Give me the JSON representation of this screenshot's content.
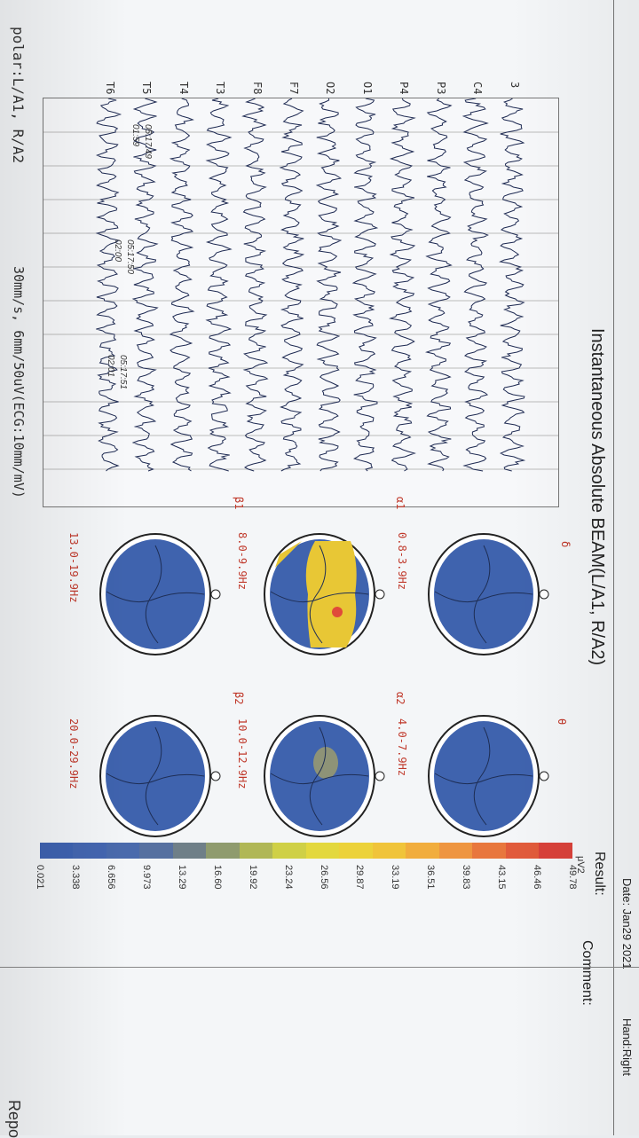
{
  "header": {
    "date": "Date: Jan29 2021",
    "hand": "Hand:Right",
    "report": "Repo"
  },
  "title": "Instantaneous Absolute BEAM(L/A1, R/A2)",
  "eeg": {
    "channels": [
      "C4",
      "P3",
      "P4",
      "O1",
      "O2",
      "F7",
      "F8",
      "T3",
      "T4",
      "T5",
      "T6"
    ],
    "channel_partial": "3",
    "times": [
      {
        "top": "05:17:49",
        "bottom": "01:59"
      },
      {
        "top": "05:17:50",
        "bottom": "02:00"
      },
      {
        "top": "05:17:51",
        "bottom": "02:01"
      }
    ],
    "polar": "polar:L/A1,  R/A2",
    "speed": "30mm/s, 6mm/50uV(ECG:10mm/mV)"
  },
  "bands": [
    {
      "letter": "δ",
      "range": "0.8-3.9Hz",
      "letter_pos": "delta"
    },
    {
      "letter": "θ",
      "range": "4.0-7.9Hz",
      "letter_pos": "theta"
    },
    {
      "letter": "α1",
      "range": "8.0-9.9Hz"
    },
    {
      "letter": "α2",
      "range": "10.0-12.9Hz"
    },
    {
      "letter": "β1",
      "range": "13.0-19.9Hz"
    },
    {
      "letter": "β2",
      "range": "20.0-29.9Hz"
    }
  ],
  "scale": {
    "unit": "μV2",
    "values": [
      "49.78",
      "46.46",
      "43.15",
      "39.83",
      "36.51",
      "33.19",
      "29.87",
      "26.56",
      "23.24",
      "19.92",
      "16.60",
      "13.29",
      "9.973",
      "6.656",
      "3.338",
      "0.021"
    ],
    "colors": [
      "#d9413a",
      "#e15b3b",
      "#e8773d",
      "#ee9540",
      "#f1ad3d",
      "#f0c43a",
      "#ecd23a",
      "#e3d83e",
      "#cfd046",
      "#b0b756",
      "#8f9b6e",
      "#6f7f88",
      "#5670a0",
      "#4a6aac",
      "#4466b0",
      "#3e62b0"
    ]
  },
  "labels": {
    "result": "Result:",
    "comment": "Comment:"
  }
}
